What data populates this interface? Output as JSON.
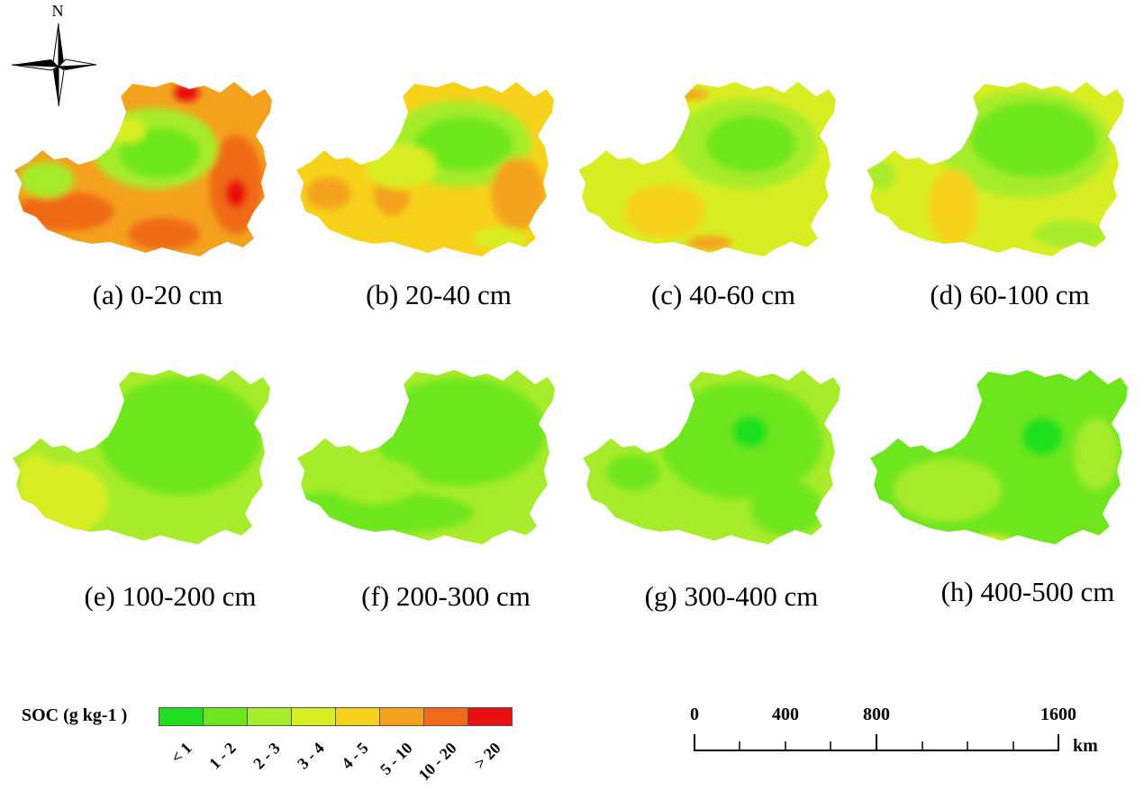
{
  "compass": {
    "north_label": "N"
  },
  "panels": [
    {
      "caption": "(a) 0-20 cm",
      "base_class": "5-10"
    },
    {
      "caption": "(b) 20-40 cm",
      "base_class": "4-5"
    },
    {
      "caption": "(c) 40-60 cm",
      "base_class": "3-4"
    },
    {
      "caption": "(d) 60-100 cm",
      "base_class": "3-4"
    },
    {
      "caption": "(e) 100-200 cm",
      "base_class": "2-3"
    },
    {
      "caption": "(f) 200-300 cm",
      "base_class": "2-3"
    },
    {
      "caption": "(g) 300-400 cm",
      "base_class": "2-3"
    },
    {
      "caption": "(h) 400-500 cm",
      "base_class": "1-2"
    }
  ],
  "legend": {
    "title": "SOC (g kg-1 )",
    "classes": [
      {
        "label": "< 1",
        "color": "#1fe01f"
      },
      {
        "label": "1 - 2",
        "color": "#6ee61e"
      },
      {
        "label": "2 - 3",
        "color": "#a6ec2a"
      },
      {
        "label": "3 - 4",
        "color": "#d9ee22"
      },
      {
        "label": "4 - 5",
        "color": "#f7d21a"
      },
      {
        "label": "5 - 10",
        "color": "#f4a21e"
      },
      {
        "label": "10 - 20",
        "color": "#f06a18"
      },
      {
        "label": "> 20",
        "color": "#e81010"
      }
    ]
  },
  "scale_bar": {
    "labels": [
      "0",
      "400",
      "800",
      "1600"
    ],
    "unit": "km"
  }
}
